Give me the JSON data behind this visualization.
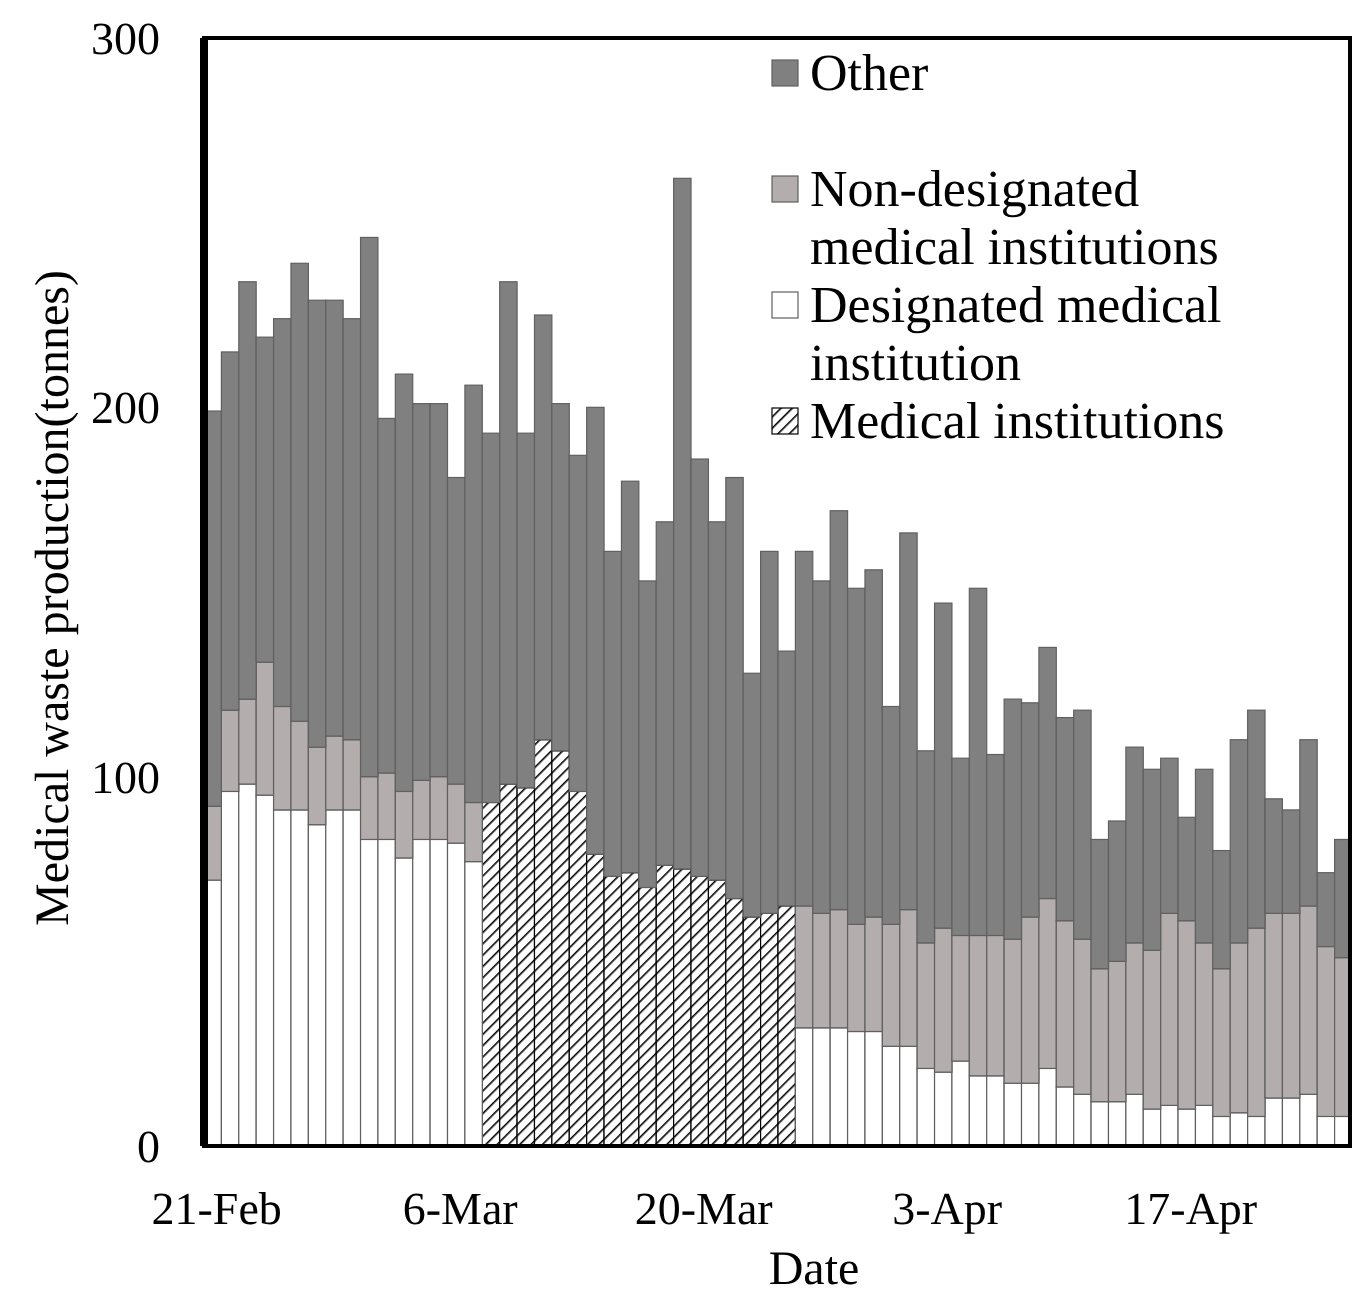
{
  "chart_data": {
    "type": "bar",
    "stacked": true,
    "xlabel": "Date",
    "ylabel": "Medical waste production(tonnes)",
    "categories": [
      "21-Feb",
      null,
      null,
      null,
      null,
      null,
      null,
      null,
      null,
      null,
      null,
      null,
      null,
      null,
      "6-Mar",
      null,
      null,
      null,
      null,
      null,
      null,
      null,
      null,
      null,
      null,
      null,
      null,
      null,
      "20-Mar",
      null,
      null,
      null,
      null,
      null,
      null,
      null,
      null,
      null,
      null,
      null,
      null,
      null,
      "3-Apr",
      null,
      null,
      null,
      null,
      null,
      null,
      null,
      null,
      null,
      null,
      null,
      null,
      null,
      "17-Apr",
      null,
      null,
      null,
      null,
      null,
      null,
      null,
      null,
      null
    ],
    "ylim": [
      0,
      300
    ],
    "yticks": [
      0,
      100,
      200,
      300
    ],
    "grid": false,
    "legend": "top right",
    "series": [
      {
        "name": "Medical institutions",
        "color": "#000000",
        "values": [
          null,
          null,
          null,
          null,
          null,
          null,
          null,
          null,
          null,
          null,
          null,
          null,
          null,
          null,
          null,
          null,
          93,
          98,
          97,
          110,
          107,
          96,
          79,
          73,
          74,
          70,
          76,
          75,
          73,
          72,
          67,
          62,
          63,
          65,
          null,
          null,
          null,
          null,
          null,
          null,
          null,
          null,
          null,
          null,
          null,
          null,
          null,
          null,
          null,
          null,
          null,
          null,
          null,
          null,
          null,
          null,
          null,
          null,
          null,
          null,
          null,
          null,
          null,
          null,
          null,
          null
        ]
      },
      {
        "name": "Designated medical institution",
        "color": "#ffffff",
        "values": [
          72,
          96,
          98,
          95,
          91,
          91,
          87,
          91,
          91,
          83,
          83,
          78,
          83,
          83,
          82,
          77,
          null,
          null,
          null,
          null,
          null,
          null,
          null,
          null,
          null,
          null,
          null,
          null,
          null,
          null,
          null,
          null,
          null,
          null,
          32,
          32,
          32,
          31,
          31,
          27,
          27,
          21,
          20,
          23,
          19,
          19,
          17,
          17,
          21,
          16,
          14,
          12,
          12,
          14,
          10,
          11,
          10,
          11,
          8,
          9,
          8,
          13,
          13,
          14,
          8,
          8
        ]
      },
      {
        "name": "Non-designated medical institutions",
        "color": "#b3adad",
        "values": [
          20,
          22,
          23,
          36,
          28,
          24,
          21,
          20,
          19,
          17,
          18,
          18,
          16,
          17,
          16,
          16,
          null,
          null,
          null,
          null,
          null,
          null,
          null,
          null,
          null,
          null,
          null,
          null,
          null,
          null,
          null,
          null,
          null,
          null,
          33,
          31,
          32,
          29,
          31,
          33,
          37,
          34,
          39,
          34,
          38,
          38,
          39,
          45,
          46,
          45,
          42,
          36,
          38,
          41,
          43,
          52,
          51,
          44,
          40,
          46,
          51,
          50,
          50,
          51,
          46,
          43
        ]
      },
      {
        "name": "Other",
        "color": "#808080",
        "values": [
          107,
          97,
          113,
          88,
          105,
          124,
          121,
          118,
          114,
          146,
          96,
          113,
          102,
          101,
          83,
          113,
          100,
          136,
          96,
          115,
          94,
          91,
          121,
          88,
          106,
          83,
          93,
          187,
          113,
          97,
          114,
          66,
          98,
          69,
          96,
          90,
          108,
          91,
          94,
          59,
          102,
          52,
          88,
          48,
          94,
          49,
          65,
          58,
          68,
          55,
          62,
          35,
          38,
          53,
          49,
          42,
          28,
          47,
          32,
          55,
          59,
          31,
          28,
          45,
          20,
          32
        ]
      }
    ]
  }
}
